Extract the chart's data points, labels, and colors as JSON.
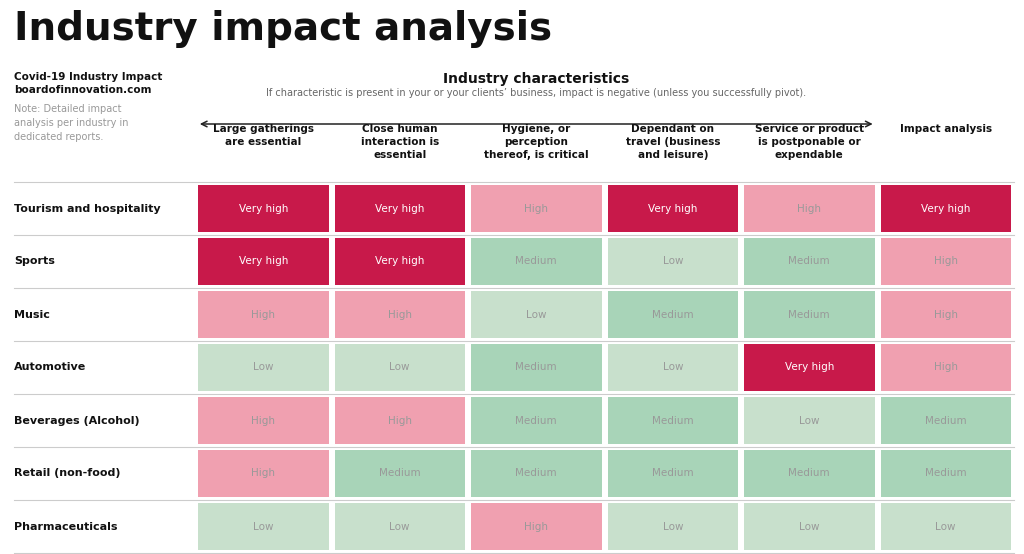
{
  "title": "Industry impact analysis",
  "background_color": "#ffffff",
  "section_header": "Industry characteristics",
  "section_subheader": "If characteristic is present in your or your clients’ business, impact is negative (unless you successfully pivot).",
  "col_headers": [
    "Large gatherings\nare essential",
    "Close human\ninteraction is\nessential",
    "Hygiene, or\nperception\nthereof, is critical",
    "Dependant on\ntravel (business\nand leisure)",
    "Service or product\nis postponable or\nexpendable",
    "Impact analysis"
  ],
  "row_labels": [
    "Tourism and hospitality",
    "Sports",
    "Music",
    "Automotive",
    "Beverages (Alcohol)",
    "Retail (non-food)",
    "Pharmaceuticals"
  ],
  "table_data": [
    [
      "Very high",
      "Very high",
      "High",
      "Very high",
      "High",
      "Very high"
    ],
    [
      "Very high",
      "Very high",
      "Medium",
      "Low",
      "Medium",
      "High"
    ],
    [
      "High",
      "High",
      "Low",
      "Medium",
      "Medium",
      "High"
    ],
    [
      "Low",
      "Low",
      "Medium",
      "Low",
      "Very high",
      "High"
    ],
    [
      "High",
      "High",
      "Medium",
      "Medium",
      "Low",
      "Medium"
    ],
    [
      "High",
      "Medium",
      "Medium",
      "Medium",
      "Medium",
      "Medium"
    ],
    [
      "Low",
      "Low",
      "High",
      "Low",
      "Low",
      "Low"
    ]
  ],
  "color_map": {
    "Very high": "#c8194a",
    "High": "#f0a0b0",
    "Medium": "#a8d4b8",
    "Low": "#c8e0cc"
  },
  "text_color_map": {
    "Very high": "#ffffff",
    "High": "#999999",
    "Medium": "#999999",
    "Low": "#999999"
  }
}
